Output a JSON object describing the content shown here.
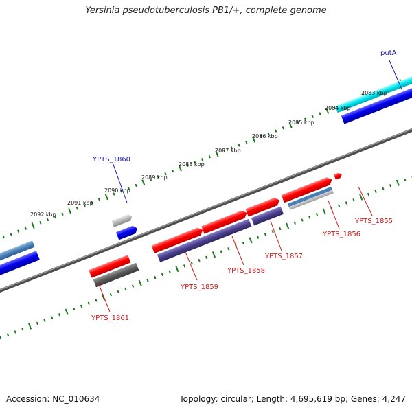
{
  "title": "Yersinia pseudotuberculosis PB1/+, complete genome",
  "footer": {
    "accession": "Accession: NC_010634",
    "summary": "Topology: circular; Length: 4,695,619 bp; Genes: 4,247"
  },
  "colors": {
    "backbone": "#7a7a7a",
    "ticks": "#1a7a1a",
    "label_top": "#1a1aa8",
    "label_bottom": "#cc1a1a",
    "red_gene": "#ff0000",
    "blue_gene": "#0000ee",
    "steelblue_gene": "#4a7fb5",
    "purple_gene": "#4a3f8c",
    "grey_gene": "#5a5a5a",
    "lightgrey_gene": "#b8b8b8",
    "cyan_gene": "#00e5ee"
  },
  "scale": {
    "tick_labels": [
      "2083 kbp",
      "2084 kbp",
      "2085 kbp",
      "2086 kbp",
      "2087 kbp",
      "2088 kbp",
      "2089 kbp",
      "2090 kbp",
      "2091 kbp",
      "2092 kbp"
    ]
  },
  "labels": {
    "putA": "putA",
    "YPTS_1860": "YPTS_1860",
    "YPTS_1855": "YPTS_1855",
    "YPTS_1856": "YPTS_1856",
    "YPTS_1857": "YPTS_1857",
    "YPTS_1858": "YPTS_1858",
    "YPTS_1859": "YPTS_1859",
    "YPTS_1861": "YPTS_1861"
  }
}
